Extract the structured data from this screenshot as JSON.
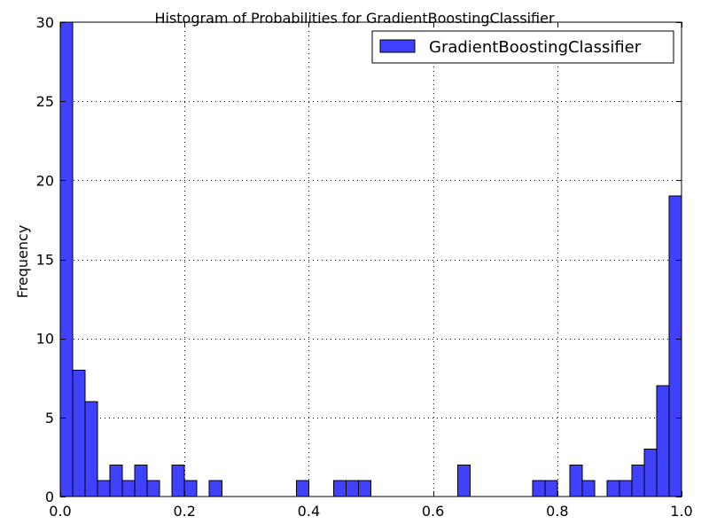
{
  "chart_data": {
    "type": "bar",
    "title": "Histogram of Probabilities for GradientBoostingClassifier",
    "xlabel": "",
    "ylabel": "Frequency",
    "xlim": [
      0.0,
      1.0
    ],
    "ylim": [
      0,
      30
    ],
    "x_ticks": [
      0.0,
      0.2,
      0.4,
      0.6,
      0.8,
      1.0
    ],
    "x_tick_labels": [
      "0.0",
      "0.2",
      "0.4",
      "0.6",
      "0.8",
      "1.0"
    ],
    "y_ticks": [
      0,
      5,
      10,
      15,
      20,
      25,
      30
    ],
    "y_tick_labels": [
      "0",
      "5",
      "10",
      "15",
      "20",
      "25",
      "30"
    ],
    "grid": true,
    "legend_placement": "top-right",
    "bar_color": "#4040ff",
    "series": [
      {
        "name": "GradientBoostingClassifier",
        "bin_width": 0.02,
        "bins": [
          {
            "x0": 0.0,
            "count": 31
          },
          {
            "x0": 0.02,
            "count": 8
          },
          {
            "x0": 0.04,
            "count": 6
          },
          {
            "x0": 0.06,
            "count": 1
          },
          {
            "x0": 0.08,
            "count": 2
          },
          {
            "x0": 0.1,
            "count": 1
          },
          {
            "x0": 0.12,
            "count": 2
          },
          {
            "x0": 0.14,
            "count": 1
          },
          {
            "x0": 0.18,
            "count": 2
          },
          {
            "x0": 0.2,
            "count": 1
          },
          {
            "x0": 0.24,
            "count": 1
          },
          {
            "x0": 0.38,
            "count": 1
          },
          {
            "x0": 0.44,
            "count": 1
          },
          {
            "x0": 0.46,
            "count": 1
          },
          {
            "x0": 0.48,
            "count": 1
          },
          {
            "x0": 0.64,
            "count": 2
          },
          {
            "x0": 0.76,
            "count": 1
          },
          {
            "x0": 0.78,
            "count": 1
          },
          {
            "x0": 0.82,
            "count": 2
          },
          {
            "x0": 0.84,
            "count": 1
          },
          {
            "x0": 0.88,
            "count": 1
          },
          {
            "x0": 0.9,
            "count": 1
          },
          {
            "x0": 0.92,
            "count": 2
          },
          {
            "x0": 0.94,
            "count": 3
          },
          {
            "x0": 0.96,
            "count": 7
          },
          {
            "x0": 0.98,
            "count": 19
          }
        ]
      }
    ]
  }
}
